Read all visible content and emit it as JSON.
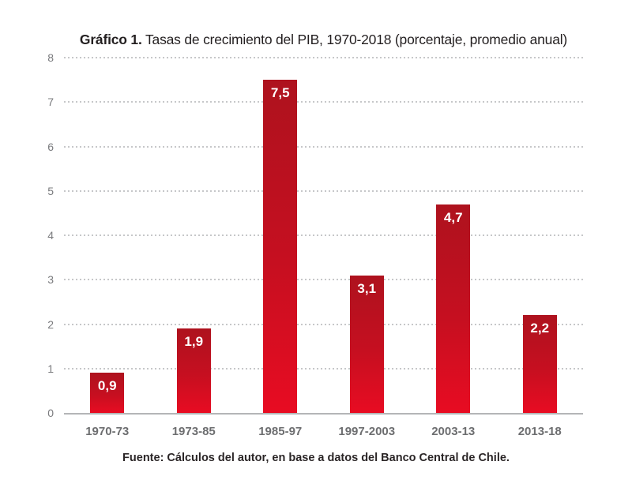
{
  "title": {
    "prefix": "Gráfico 1.",
    "rest": " Tasas de crecimiento del PIB, 1970-2018 (porcentaje, promedio anual)"
  },
  "source": "Fuente: Cálculos del autor, en base a datos del Banco Central de Chile.",
  "chart_data": {
    "type": "bar",
    "title": "Gráfico 1. Tasas de crecimiento del PIB, 1970-2018 (porcentaje, promedio anual)",
    "categories": [
      "1970-73",
      "1973-85",
      "1985-97",
      "1997-2003",
      "2003-13",
      "2013-18"
    ],
    "values": [
      0.9,
      1.9,
      7.5,
      3.1,
      4.7,
      2.2
    ],
    "value_labels": [
      "0,9",
      "1,9",
      "7,5",
      "3,1",
      "4,7",
      "2,2"
    ],
    "xlabel": "",
    "ylabel": "",
    "ylim": [
      0,
      8
    ],
    "yticks": [
      0,
      1,
      2,
      3,
      4,
      5,
      6,
      7,
      8
    ],
    "grid": "horizontal-dotted",
    "legend": "none",
    "source": "Fuente: Cálculos del autor, en base a datos del Banco Central de Chile.",
    "colors": {
      "bar_top": "#ae121e",
      "bar_bottom": "#e80c22",
      "value_label": "#ffffff",
      "gridline": "#c6c7c9",
      "baseline": "#b4b5b7",
      "y_tick_text": "#7a7b7e",
      "x_tick_text": "#6d6e70",
      "title_text": "#231f20"
    }
  }
}
